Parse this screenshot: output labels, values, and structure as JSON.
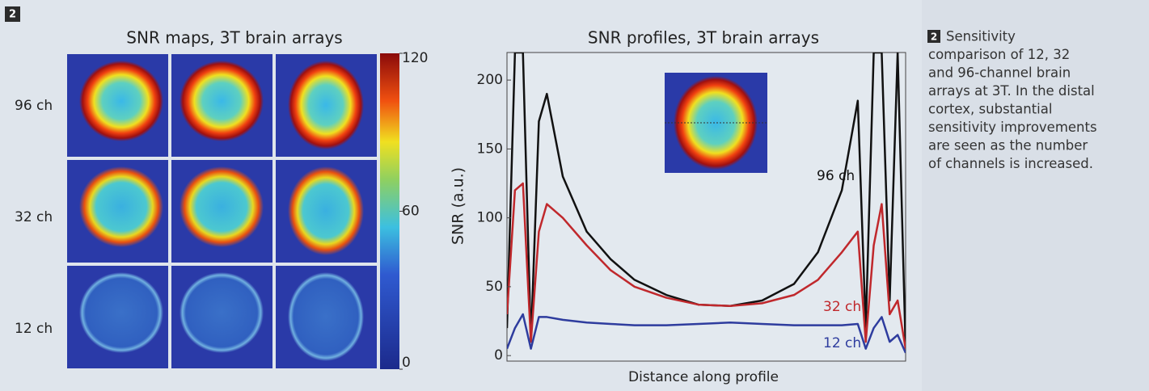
{
  "badge": "2",
  "maps": {
    "title": "SNR maps, 3T brain arrays",
    "rows": [
      "96 ch",
      "32 ch",
      "12 ch"
    ],
    "colorbar": {
      "lim": [
        0,
        120
      ],
      "ticks": [
        0,
        60,
        120
      ]
    }
  },
  "chart_data": {
    "type": "line",
    "title": "SNR profiles, 3T brain arrays",
    "x_label": "Distance along profile",
    "y_label": "SNR (a.u.)",
    "x": [
      0,
      2,
      4,
      6,
      8,
      10,
      14,
      20,
      26,
      32,
      40,
      48,
      56,
      64,
      72,
      78,
      84,
      88,
      90,
      92,
      94,
      96,
      98,
      100
    ],
    "xlim": [
      0,
      100
    ],
    "ylim": [
      -4,
      220
    ],
    "yticks": [
      0,
      50,
      100,
      150,
      200
    ],
    "series": [
      {
        "name": "96 ch",
        "color": "#111111",
        "values": [
          20,
          220,
          220,
          10,
          170,
          190,
          130,
          90,
          70,
          55,
          44,
          37,
          36,
          40,
          52,
          75,
          120,
          185,
          20,
          220,
          220,
          40,
          220,
          5
        ]
      },
      {
        "name": "32 ch",
        "color": "#c0282c",
        "values": [
          30,
          120,
          125,
          10,
          90,
          110,
          100,
          80,
          62,
          50,
          42,
          37,
          36,
          38,
          44,
          55,
          75,
          90,
          10,
          80,
          110,
          30,
          40,
          5
        ]
      },
      {
        "name": "12 ch",
        "color": "#2e3c9e",
        "values": [
          5,
          20,
          30,
          5,
          28,
          28,
          26,
          24,
          23,
          22,
          22,
          23,
          24,
          23,
          22,
          22,
          22,
          23,
          5,
          20,
          28,
          10,
          15,
          2
        ]
      }
    ]
  },
  "caption": {
    "badge": "2",
    "lines": [
      "Sensitivity",
      "comparison of 12, 32",
      "and 96-channel brain",
      "arrays at 3T. In the distal",
      "cortex, substantial",
      "sensitivity improvements",
      "are seen as the number",
      "of channels is increased."
    ]
  }
}
